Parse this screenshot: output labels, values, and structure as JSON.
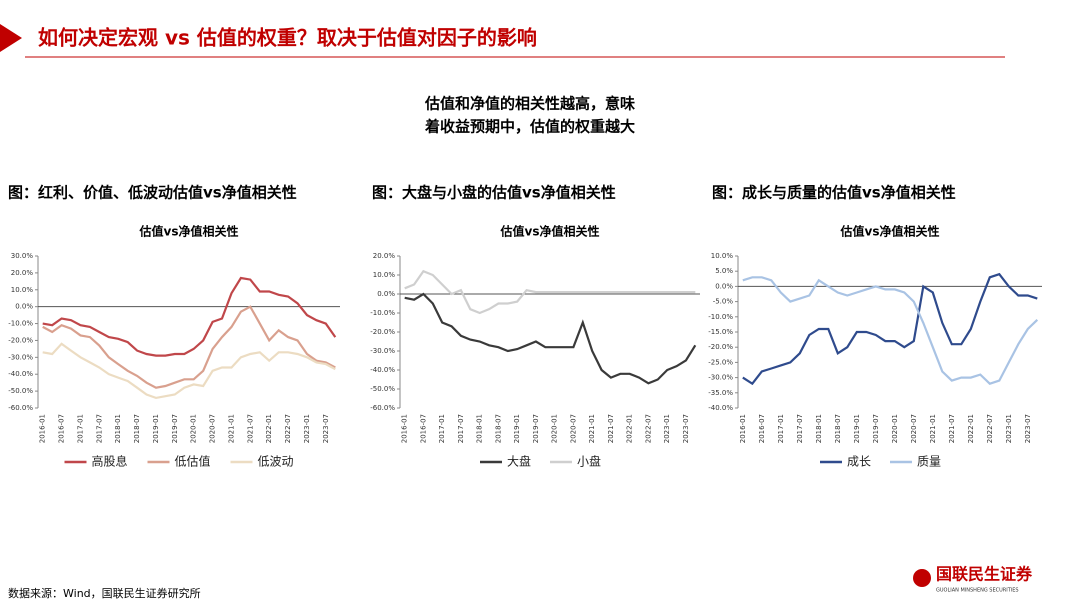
{
  "header": {
    "title": "如何决定宏观 vs 估值的权重？取决于估值对因子的影响"
  },
  "note": [
    "估值和净值的相关性越高，意味",
    "着收益预期中，估值的权重越大"
  ],
  "captions": [
    "图：红利、价值、低波动估值vs净值相关性",
    "图：大盘与小盘的估值vs净值相关性",
    "图：成长与质量的估值vs净值相关性"
  ],
  "chart_data": [
    {
      "type": "line",
      "title": "估值vs净值相关性",
      "categories": [
        "2016-01",
        null,
        "2016-07",
        null,
        "2017-01",
        null,
        "2017-07",
        null,
        "2018-01",
        null,
        "2018-07",
        null,
        "2019-01",
        null,
        "2019-07",
        null,
        "2020-01",
        null,
        "2020-07",
        null,
        "2021-01",
        null,
        "2021-07",
        null,
        "2022-01",
        null,
        "2022-07",
        null,
        "2023-01",
        null,
        "2023-07",
        null
      ],
      "series": [
        {
          "name": "高股息",
          "color": "#c0474a",
          "values": [
            -10,
            -11,
            -7,
            -8,
            -11,
            -12,
            -15,
            -18,
            -19,
            -21,
            -26,
            -28,
            -29,
            -29,
            -28,
            -28,
            -25,
            -20,
            -9,
            -7,
            8,
            17,
            16,
            9,
            9,
            7,
            6,
            2,
            -5,
            -8,
            -10,
            -18
          ]
        },
        {
          "name": "低估值",
          "color": "#d9a08e",
          "values": [
            -12,
            -15,
            -11,
            -13,
            -17,
            -18,
            -23,
            -30,
            -34,
            -38,
            -41,
            -45,
            -48,
            -47,
            -45,
            -43,
            -43,
            -38,
            -25,
            -18,
            -12,
            -3,
            0,
            -10,
            -20,
            -14,
            -18,
            -20,
            -28,
            -32,
            -33,
            -36
          ]
        },
        {
          "name": "低波动",
          "color": "#ecdcc2",
          "values": [
            -27,
            -28,
            -22,
            -26,
            -30,
            -33,
            -36,
            -40,
            -42,
            -44,
            -48,
            -52,
            -54,
            -53,
            -52,
            -48,
            -46,
            -47,
            -38,
            -36,
            -36,
            -30,
            -28,
            -27,
            -32,
            -27,
            -27,
            -28,
            -30,
            -33,
            -34,
            -37
          ]
        }
      ],
      "ylim": [
        -60,
        30
      ],
      "yticks": [
        {
          "value": -60,
          "label": "-60.0%"
        },
        {
          "value": -50,
          "label": "-50.0%"
        },
        {
          "value": -40,
          "label": "-40.0%"
        },
        {
          "value": -30,
          "label": "-30.0%"
        },
        {
          "value": -20,
          "label": "-20.0%"
        },
        {
          "value": -10,
          "label": "-10.0%"
        },
        {
          "value": 0,
          "label": "0.0%"
        },
        {
          "value": 10,
          "label": "10.0%"
        },
        {
          "value": 20,
          "label": "20.0%"
        },
        {
          "value": 30,
          "label": "30.0%"
        }
      ]
    },
    {
      "type": "line",
      "title": "估值vs净值相关性",
      "categories": [
        "2016-01",
        null,
        "2016-07",
        null,
        "2017-01",
        null,
        "2017-07",
        null,
        "2018-01",
        null,
        "2018-07",
        null,
        "2019-01",
        null,
        "2019-07",
        null,
        "2020-01",
        null,
        "2020-07",
        null,
        "2021-01",
        null,
        "2021-07",
        null,
        "2022-01",
        null,
        "2022-07",
        null,
        "2023-01",
        null,
        "2023-07",
        null
      ],
      "series": [
        {
          "name": "大盘",
          "color": "#3a3a3a",
          "values": [
            -2,
            -3,
            0,
            -5,
            -15,
            -17,
            -22,
            -24,
            -25,
            -27,
            -28,
            -30,
            -29,
            -27,
            -25,
            -28,
            -28,
            -28,
            -28,
            -15,
            -30,
            -40,
            -44,
            -42,
            -42,
            -44,
            -47,
            -45,
            -40,
            -38,
            -35,
            -27
          ]
        },
        {
          "name": "小盘",
          "color": "#cfcfcf",
          "values": [
            3,
            5,
            12,
            10,
            5,
            0,
            2,
            -8,
            -10,
            -8,
            -5,
            -5,
            -4,
            2,
            1,
            1,
            1,
            1,
            1,
            1,
            1,
            1,
            1,
            1,
            1,
            1,
            1,
            1,
            1,
            1,
            1,
            1
          ]
        }
      ],
      "ylim": [
        -60,
        20
      ],
      "yticks": [
        {
          "value": -60,
          "label": "-60.0%"
        },
        {
          "value": -50,
          "label": "-50.0%"
        },
        {
          "value": -40,
          "label": "-40.0%"
        },
        {
          "value": -30,
          "label": "-30.0%"
        },
        {
          "value": -20,
          "label": "-20.0%"
        },
        {
          "value": -10,
          "label": "-10.0%"
        },
        {
          "value": 0,
          "label": "0.0%"
        },
        {
          "value": 10,
          "label": "10.0%"
        },
        {
          "value": 20,
          "label": "20.0%"
        }
      ]
    },
    {
      "type": "line",
      "title": "估值vs净值相关性",
      "categories": [
        "2016-01",
        null,
        "2016-07",
        null,
        "2017-01",
        null,
        "2017-07",
        null,
        "2018-01",
        null,
        "2018-07",
        null,
        "2019-01",
        null,
        "2019-07",
        null,
        "2020-01",
        null,
        "2020-07",
        null,
        "2021-01",
        null,
        "2021-07",
        null,
        "2022-01",
        null,
        "2022-07",
        null,
        "2023-01",
        null,
        "2023-07",
        null
      ],
      "series": [
        {
          "name": "成长",
          "color": "#2f4b8d",
          "values": [
            -30,
            -32,
            -28,
            -27,
            -26,
            -25,
            -22,
            -16,
            -14,
            -14,
            -22,
            -20,
            -15,
            -15,
            -16,
            -18,
            -18,
            -20,
            -18,
            0,
            -2,
            -12,
            -19,
            -19,
            -14,
            -5,
            3,
            4,
            0,
            -3,
            -3,
            -4
          ]
        },
        {
          "name": "质量",
          "color": "#a9c3e4",
          "values": [
            2,
            3,
            3,
            2,
            -2,
            -5,
            -4,
            -3,
            2,
            0,
            -2,
            -3,
            -2,
            -1,
            0,
            -1,
            -1,
            -2,
            -5,
            -12,
            -20,
            -28,
            -31,
            -30,
            -30,
            -29,
            -32,
            -31,
            -25,
            -19,
            -14,
            -11
          ]
        }
      ],
      "ylim": [
        -40,
        10
      ],
      "yticks": [
        {
          "value": -40,
          "label": "-40.0%"
        },
        {
          "value": -35,
          "label": "-35.0%"
        },
        {
          "value": -30,
          "label": "-30.0%"
        },
        {
          "value": -25,
          "label": "-25.0%"
        },
        {
          "value": -20,
          "label": "-20.0%"
        },
        {
          "value": -15,
          "label": "-15.0%"
        },
        {
          "value": -10,
          "label": "-10.0%"
        },
        {
          "value": -5,
          "label": "-5.0%"
        },
        {
          "value": 0,
          "label": "0.0%"
        },
        {
          "value": 5,
          "label": "5.0%"
        },
        {
          "value": 10,
          "label": "10.0%"
        }
      ]
    }
  ],
  "source": "数据来源：Wind，国联民生证券研究所",
  "logo": {
    "name": "国联民生证券",
    "english": "GUOLIAN MINSHENG SECURITIES"
  }
}
